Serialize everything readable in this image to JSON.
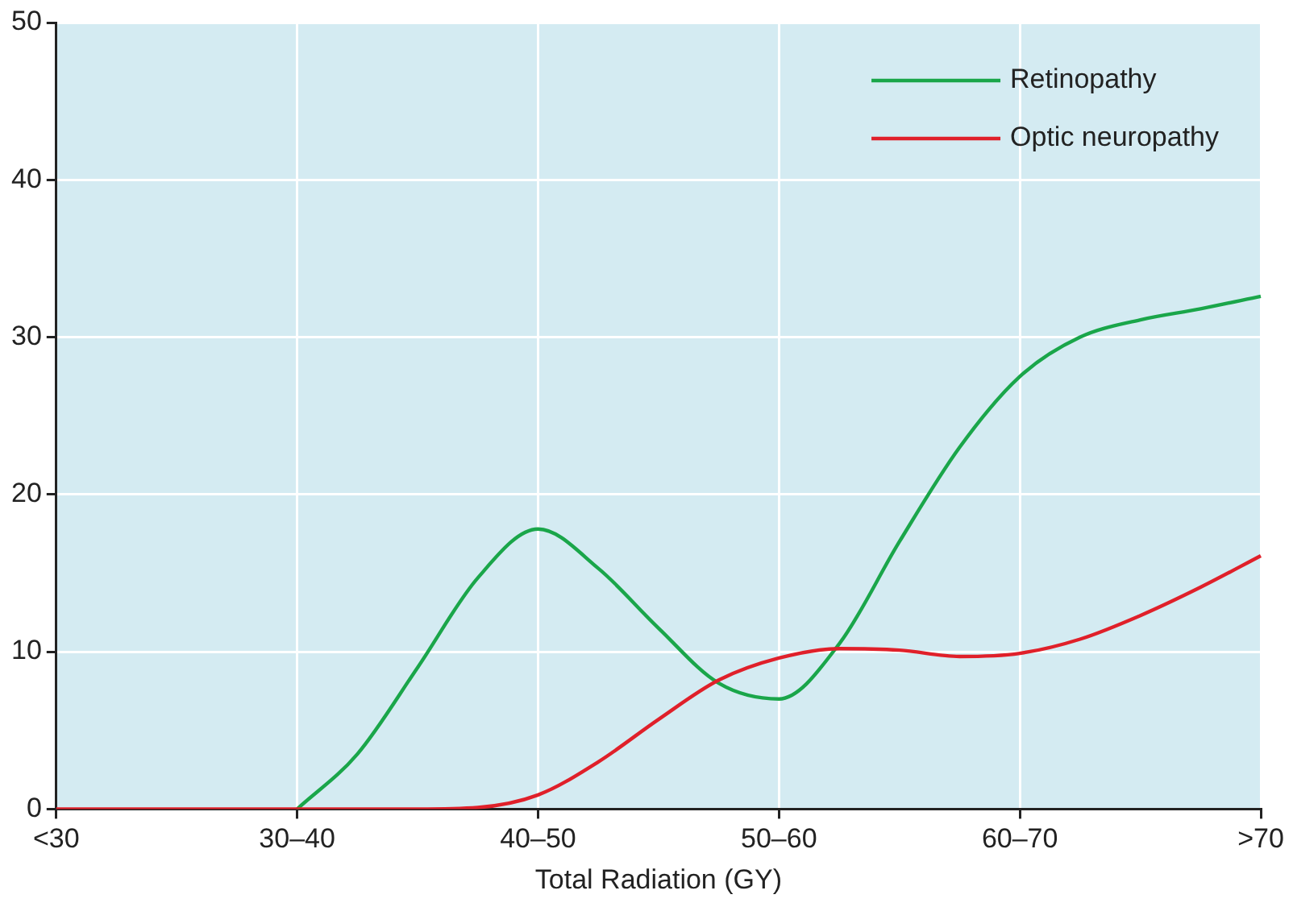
{
  "chart_data": {
    "type": "line",
    "xlabel": "Total Radiation (GY)",
    "categories": [
      "<30",
      null,
      null,
      null,
      "30–40",
      null,
      null,
      null,
      "40–50",
      null,
      null,
      null,
      "50–60",
      null,
      null,
      null,
      "60–70",
      null,
      null,
      null,
      ">70"
    ],
    "ylim": [
      0,
      50
    ],
    "yticks": [
      0,
      10,
      20,
      30,
      40,
      50
    ],
    "grid": true,
    "legend": "top right",
    "marker": "none",
    "line_style": "solid",
    "series": [
      {
        "name": "Retinopathy",
        "color": "#1aa64a",
        "values": [
          null,
          null,
          null,
          null,
          0,
          3.5,
          9,
          14.7,
          17.8,
          15.3,
          11.5,
          8,
          7,
          10.5,
          17,
          23,
          27.5,
          30,
          31.1,
          31.8,
          32.6
        ]
      },
      {
        "name": "Optic neuropathy",
        "color": "#e0202a",
        "values": [
          0,
          0,
          0,
          0,
          0,
          0,
          0,
          0.1,
          0.9,
          3,
          5.7,
          8.2,
          9.6,
          10.2,
          10.1,
          9.7,
          9.9,
          10.8,
          12.3,
          14.1,
          16.1
        ]
      }
    ]
  }
}
